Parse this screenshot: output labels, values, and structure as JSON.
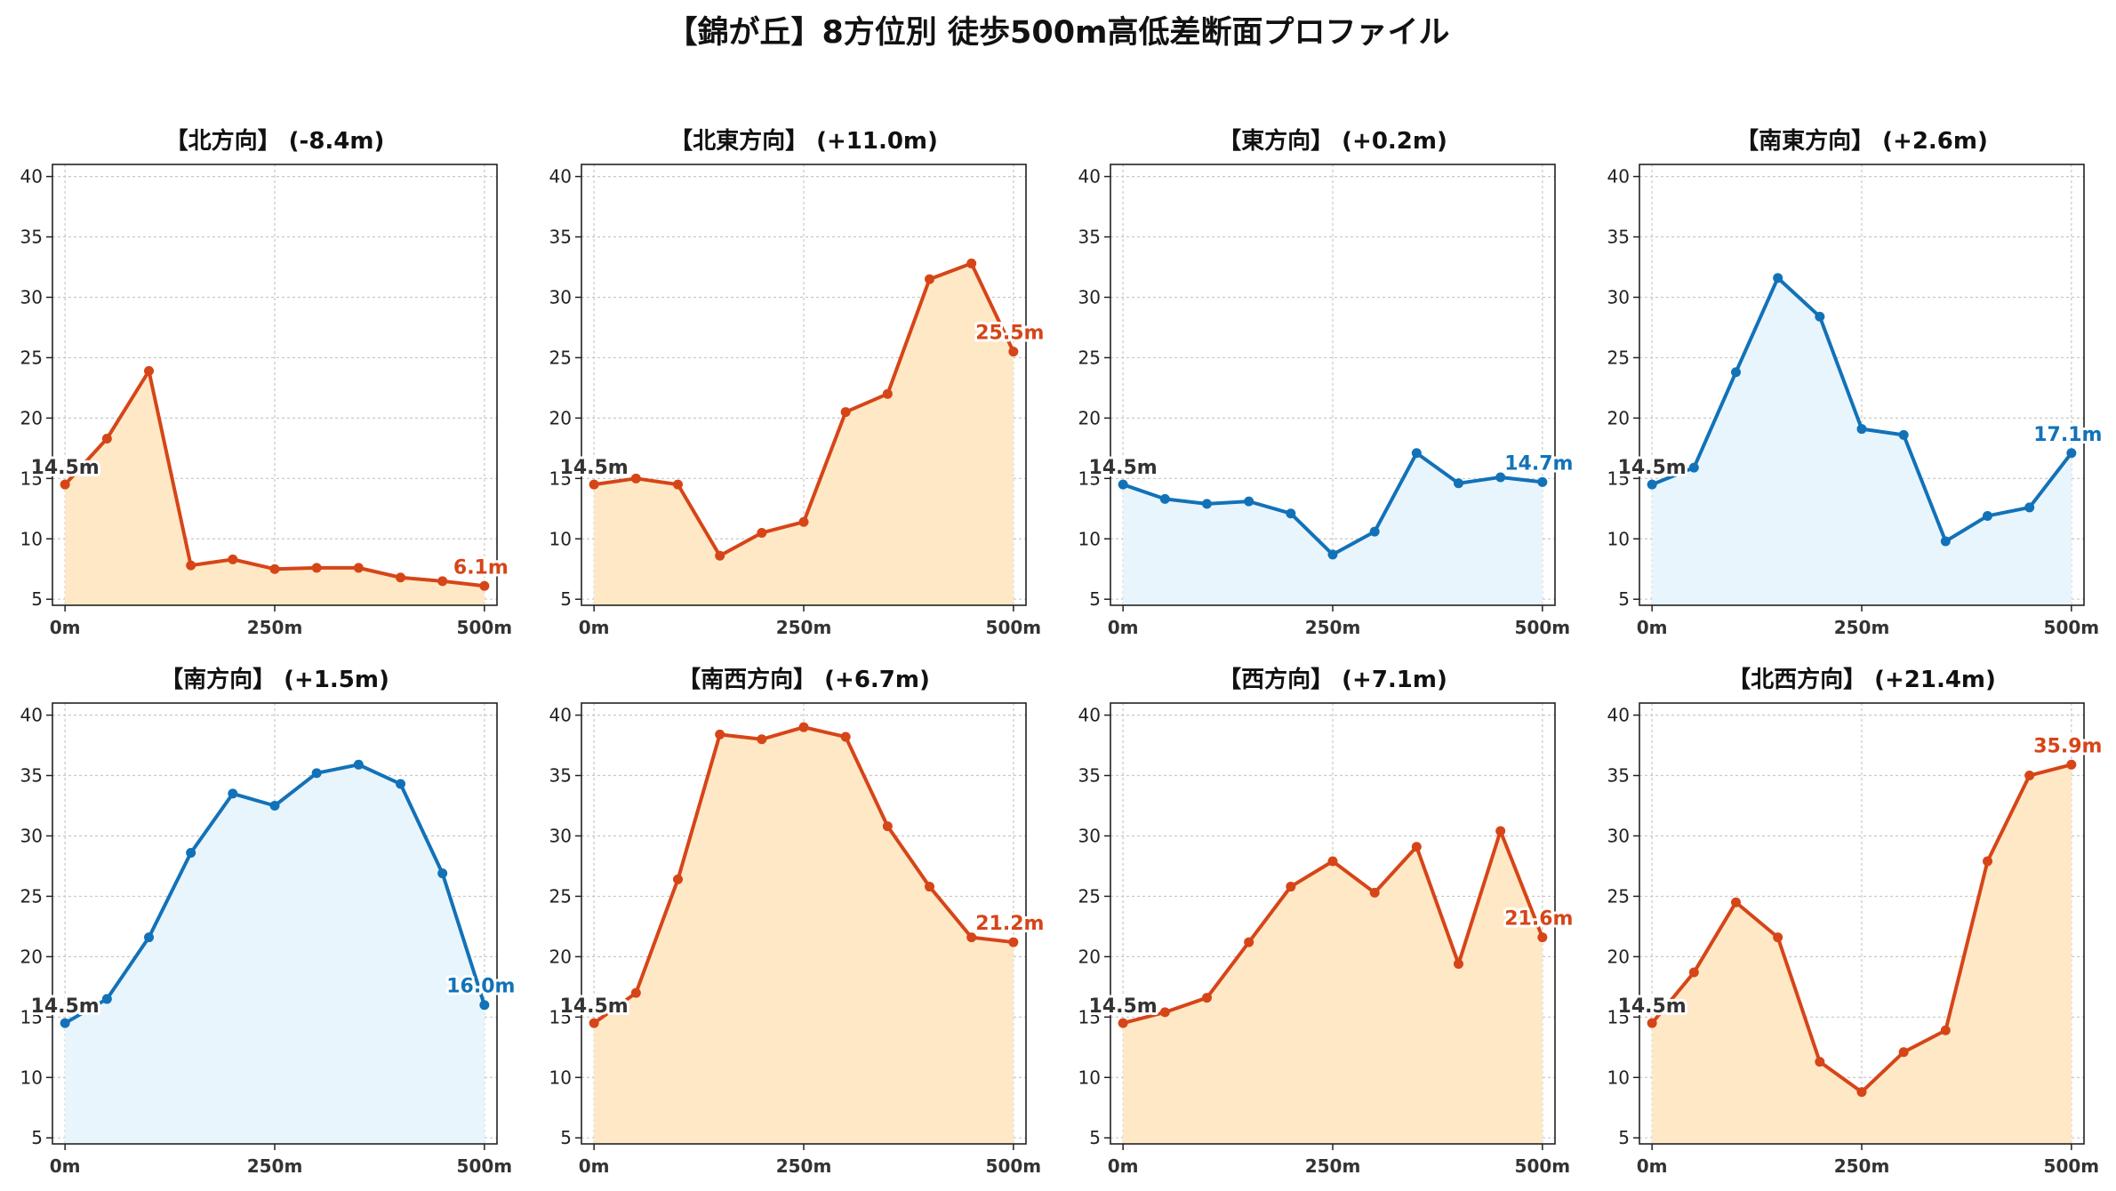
{
  "title": "【錦が丘】8方位別 徒歩500m高低差断面プロファイル",
  "colors": {
    "rise_line": "#d64518",
    "rise_fill": "#ffe8c6",
    "flat_line": "#1272b8",
    "flat_fill": "#e9f5fc",
    "start_label": "#333333",
    "grid": "#c8c8c8"
  },
  "chart_data": [
    {
      "type": "area",
      "title": "【北方向】 (-8.4m)",
      "x": [
        0,
        50,
        100,
        150,
        200,
        250,
        300,
        350,
        400,
        450,
        500
      ],
      "y": [
        14.5,
        18.3,
        23.9,
        7.8,
        8.3,
        7.5,
        7.6,
        7.6,
        6.8,
        6.5,
        6.1
      ],
      "color": "rise",
      "start_label": "14.5m",
      "end_label": "6.1m",
      "xticks": [
        "0m",
        "250m",
        "500m"
      ],
      "yticks": [
        5,
        10,
        15,
        20,
        25,
        30,
        35,
        40
      ],
      "xlim": [
        -15,
        515
      ],
      "ylim": [
        4.5,
        41
      ],
      "grid": true
    },
    {
      "type": "area",
      "title": "【北東方向】 (+11.0m)",
      "x": [
        0,
        50,
        100,
        150,
        200,
        250,
        300,
        350,
        400,
        450,
        500
      ],
      "y": [
        14.5,
        15.0,
        14.5,
        8.6,
        10.5,
        11.4,
        20.5,
        22.0,
        31.5,
        32.8,
        25.5
      ],
      "color": "rise",
      "start_label": "14.5m",
      "end_label": "25.5m",
      "xticks": [
        "0m",
        "250m",
        "500m"
      ],
      "yticks": [
        5,
        10,
        15,
        20,
        25,
        30,
        35,
        40
      ],
      "xlim": [
        -15,
        515
      ],
      "ylim": [
        4.5,
        41
      ],
      "grid": true
    },
    {
      "type": "area",
      "title": "【東方向】 (+0.2m)",
      "x": [
        0,
        50,
        100,
        150,
        200,
        250,
        300,
        350,
        400,
        450,
        500
      ],
      "y": [
        14.5,
        13.3,
        12.9,
        13.1,
        12.1,
        8.7,
        10.6,
        17.1,
        14.6,
        15.1,
        14.7
      ],
      "color": "flat",
      "start_label": "14.5m",
      "end_label": "14.7m",
      "xticks": [
        "0m",
        "250m",
        "500m"
      ],
      "yticks": [
        5,
        10,
        15,
        20,
        25,
        30,
        35,
        40
      ],
      "xlim": [
        -15,
        515
      ],
      "ylim": [
        4.5,
        41
      ],
      "grid": true
    },
    {
      "type": "area",
      "title": "【南東方向】 (+2.6m)",
      "x": [
        0,
        50,
        100,
        150,
        200,
        250,
        300,
        350,
        400,
        450,
        500
      ],
      "y": [
        14.5,
        15.9,
        23.8,
        31.6,
        28.4,
        19.1,
        18.6,
        9.8,
        11.9,
        12.6,
        17.1
      ],
      "color": "flat",
      "start_label": "14.5m",
      "end_label": "17.1m",
      "xticks": [
        "0m",
        "250m",
        "500m"
      ],
      "yticks": [
        5,
        10,
        15,
        20,
        25,
        30,
        35,
        40
      ],
      "xlim": [
        -15,
        515
      ],
      "ylim": [
        4.5,
        41
      ],
      "grid": true
    },
    {
      "type": "area",
      "title": "【南方向】 (+1.5m)",
      "x": [
        0,
        50,
        100,
        150,
        200,
        250,
        300,
        350,
        400,
        450,
        500
      ],
      "y": [
        14.5,
        16.5,
        21.6,
        28.6,
        33.5,
        32.5,
        35.2,
        35.9,
        34.3,
        26.9,
        16.0
      ],
      "color": "flat",
      "start_label": "14.5m",
      "end_label": "16.0m",
      "xticks": [
        "0m",
        "250m",
        "500m"
      ],
      "yticks": [
        5,
        10,
        15,
        20,
        25,
        30,
        35,
        40
      ],
      "xlim": [
        -15,
        515
      ],
      "ylim": [
        4.5,
        41
      ],
      "grid": true
    },
    {
      "type": "area",
      "title": "【南西方向】 (+6.7m)",
      "x": [
        0,
        50,
        100,
        150,
        200,
        250,
        300,
        350,
        400,
        450,
        500
      ],
      "y": [
        14.5,
        17.0,
        26.4,
        38.4,
        38.0,
        39.0,
        38.2,
        30.8,
        25.8,
        21.6,
        21.2
      ],
      "color": "rise",
      "start_label": "14.5m",
      "end_label": "21.2m",
      "xticks": [
        "0m",
        "250m",
        "500m"
      ],
      "yticks": [
        5,
        10,
        15,
        20,
        25,
        30,
        35,
        40
      ],
      "xlim": [
        -15,
        515
      ],
      "ylim": [
        4.5,
        41
      ],
      "grid": true
    },
    {
      "type": "area",
      "title": "【西方向】 (+7.1m)",
      "x": [
        0,
        50,
        100,
        150,
        200,
        250,
        300,
        350,
        400,
        450,
        500
      ],
      "y": [
        14.5,
        15.4,
        16.6,
        21.2,
        25.8,
        27.9,
        25.3,
        29.1,
        19.4,
        30.4,
        21.6
      ],
      "color": "rise",
      "start_label": "14.5m",
      "end_label": "21.6m",
      "xticks": [
        "0m",
        "250m",
        "500m"
      ],
      "yticks": [
        5,
        10,
        15,
        20,
        25,
        30,
        35,
        40
      ],
      "xlim": [
        -15,
        515
      ],
      "ylim": [
        4.5,
        41
      ],
      "grid": true
    },
    {
      "type": "area",
      "title": "【北西方向】 (+21.4m)",
      "x": [
        0,
        50,
        100,
        150,
        200,
        250,
        300,
        350,
        400,
        450,
        500
      ],
      "y": [
        14.5,
        18.7,
        24.5,
        21.6,
        11.3,
        8.8,
        12.1,
        13.9,
        27.9,
        35.0,
        35.9
      ],
      "color": "rise",
      "start_label": "14.5m",
      "end_label": "35.9m",
      "xticks": [
        "0m",
        "250m",
        "500m"
      ],
      "yticks": [
        5,
        10,
        15,
        20,
        25,
        30,
        35,
        40
      ],
      "xlim": [
        -15,
        515
      ],
      "ylim": [
        4.5,
        41
      ],
      "grid": true
    }
  ]
}
